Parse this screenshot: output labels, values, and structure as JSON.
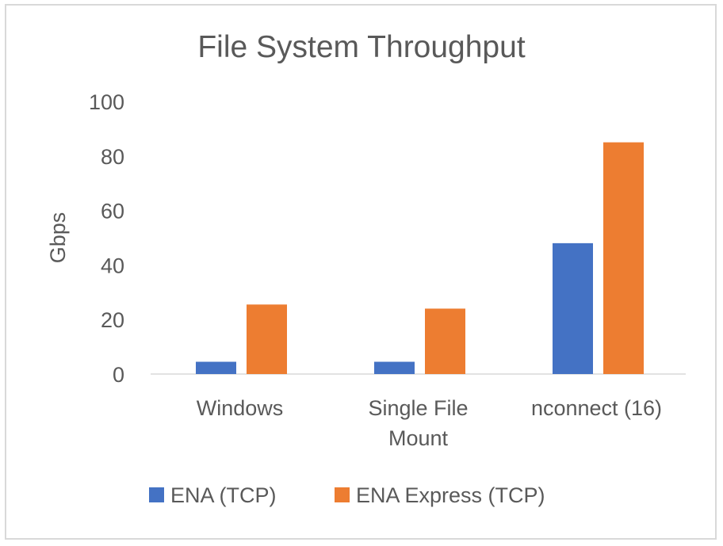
{
  "chart_data": {
    "type": "bar",
    "title": "File System Throughput",
    "xlabel": "",
    "ylabel": "Gbps",
    "ylim": [
      0,
      100
    ],
    "yticks": [
      0,
      20,
      40,
      60,
      80,
      100
    ],
    "grid": false,
    "legend_position": "bottom",
    "categories": [
      [
        "Windows"
      ],
      [
        "Single File",
        "Mount"
      ],
      [
        "nconnect (16)"
      ]
    ],
    "series": [
      {
        "name": "ENA (TCP)",
        "color": "#4472C4",
        "values": [
          4.5,
          4.5,
          48
        ]
      },
      {
        "name": "ENA Express (TCP)",
        "color": "#ED7D31",
        "values": [
          25.5,
          24,
          85
        ]
      }
    ]
  }
}
